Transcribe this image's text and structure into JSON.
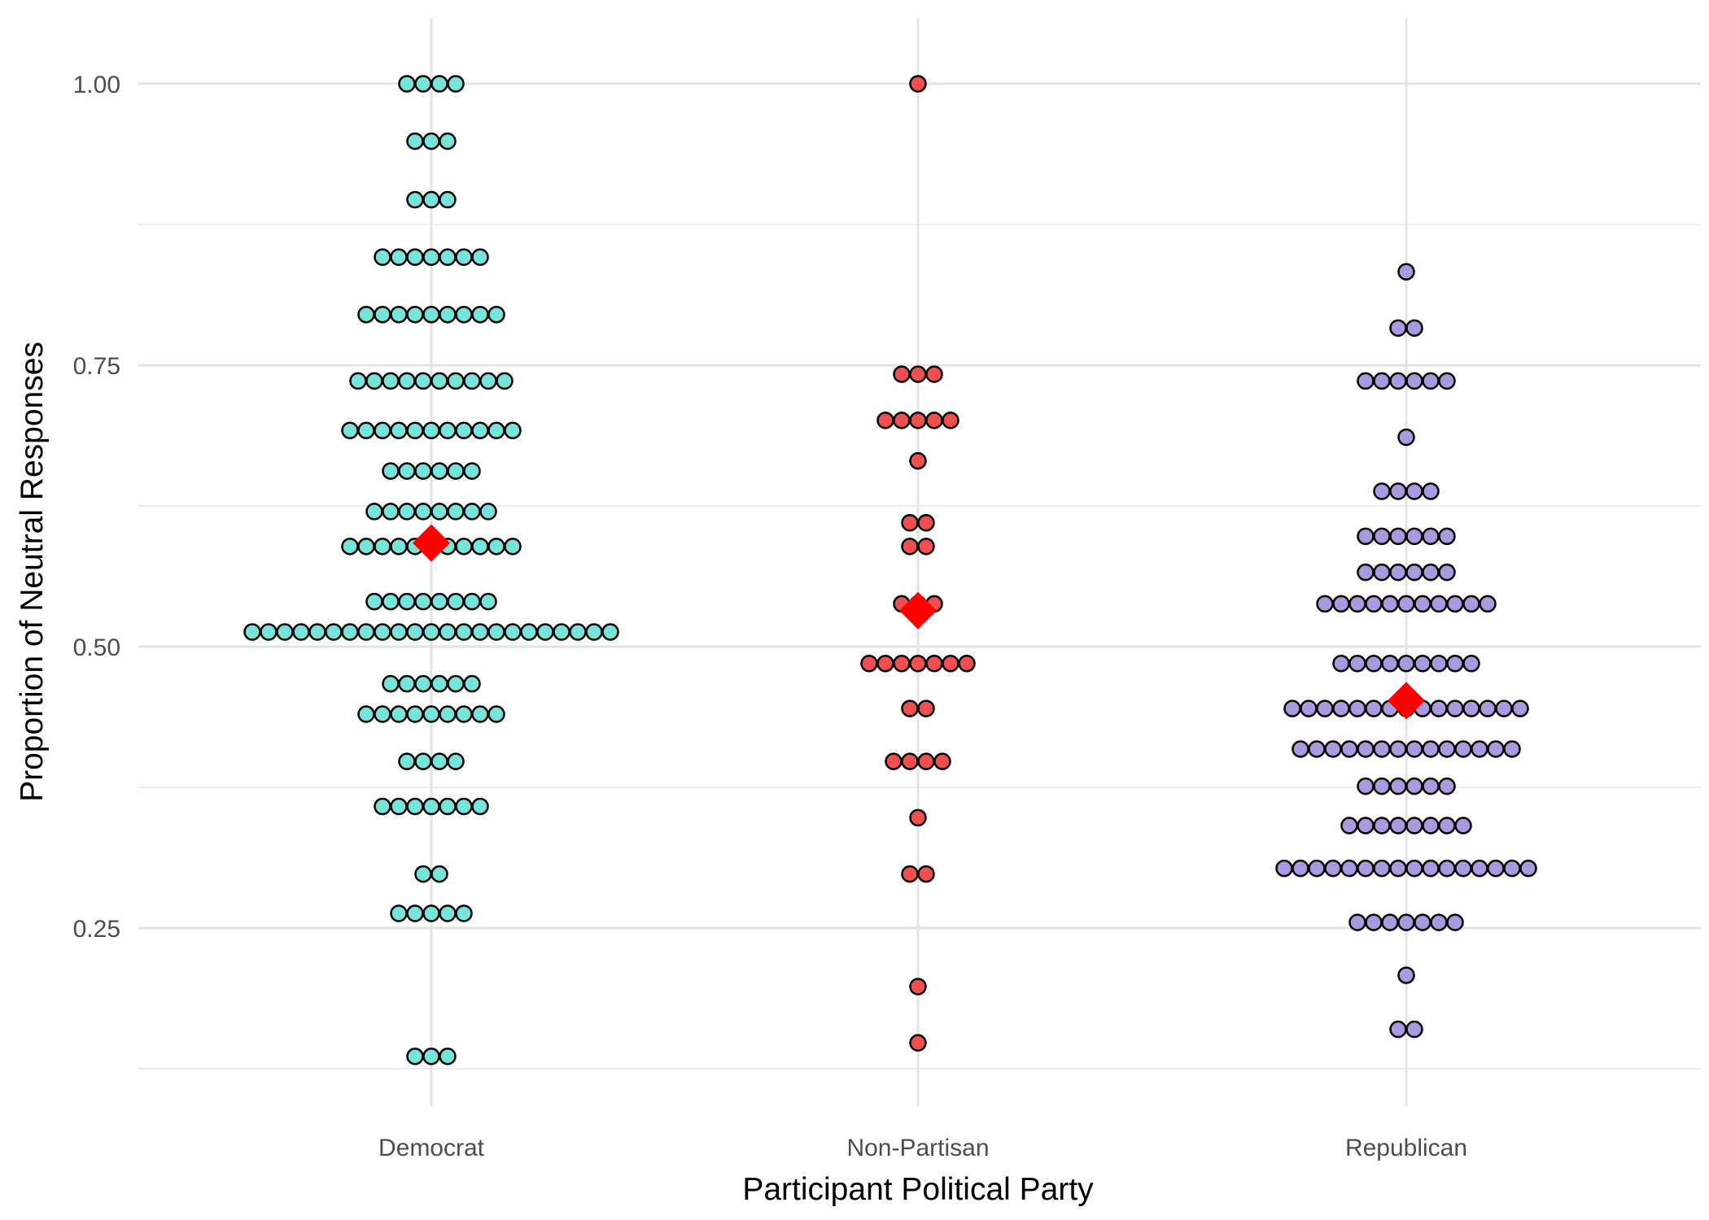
{
  "chart_data": {
    "type": "dotplot",
    "xlabel": "Participant Political Party",
    "ylabel": "Proportion of Neutral Responses",
    "categories": [
      "Democrat",
      "Non-Partisan",
      "Republican"
    ],
    "y_ticks": [
      0.25,
      0.5,
      0.75,
      1.0
    ],
    "y_tick_labels": [
      "0.25",
      "0.50",
      "0.75",
      "1.00"
    ],
    "ylim": [
      0.1,
      1.05
    ],
    "grid": true,
    "legend": "none",
    "colors": {
      "Democrat": "#76e4d8",
      "Non-Partisan": "#f04f4f",
      "Republican": "#a999de",
      "mean_marker": "#ff0000",
      "dot_outline": "#000000"
    },
    "series": [
      {
        "category": "Democrat",
        "bins": [
          {
            "y": 1.0,
            "count": 4
          },
          {
            "y": 0.949,
            "count": 3
          },
          {
            "y": 0.897,
            "count": 3
          },
          {
            "y": 0.846,
            "count": 7
          },
          {
            "y": 0.795,
            "count": 9
          },
          {
            "y": 0.736,
            "count": 10
          },
          {
            "y": 0.692,
            "count": 11
          },
          {
            "y": 0.656,
            "count": 6
          },
          {
            "y": 0.62,
            "count": 8
          },
          {
            "y": 0.589,
            "count": 11
          },
          {
            "y": 0.54,
            "count": 8
          },
          {
            "y": 0.513,
            "count": 23
          },
          {
            "y": 0.467,
            "count": 6
          },
          {
            "y": 0.44,
            "count": 9
          },
          {
            "y": 0.398,
            "count": 4
          },
          {
            "y": 0.358,
            "count": 7
          },
          {
            "y": 0.298,
            "count": 2
          },
          {
            "y": 0.263,
            "count": 5
          },
          {
            "y": 0.136,
            "count": 3
          }
        ],
        "mean": 0.592
      },
      {
        "category": "Non-Partisan",
        "bins": [
          {
            "y": 1.0,
            "count": 1
          },
          {
            "y": 0.742,
            "count": 3
          },
          {
            "y": 0.701,
            "count": 5
          },
          {
            "y": 0.665,
            "count": 1
          },
          {
            "y": 0.61,
            "count": 2
          },
          {
            "y": 0.589,
            "count": 2
          },
          {
            "y": 0.538,
            "count": 3
          },
          {
            "y": 0.485,
            "count": 7
          },
          {
            "y": 0.445,
            "count": 2
          },
          {
            "y": 0.398,
            "count": 4
          },
          {
            "y": 0.348,
            "count": 1
          },
          {
            "y": 0.298,
            "count": 2
          },
          {
            "y": 0.198,
            "count": 1
          },
          {
            "y": 0.148,
            "count": 1
          }
        ],
        "mean": 0.532
      },
      {
        "category": "Republican",
        "bins": [
          {
            "y": 0.833,
            "count": 1
          },
          {
            "y": 0.783,
            "count": 2
          },
          {
            "y": 0.736,
            "count": 6
          },
          {
            "y": 0.686,
            "count": 1
          },
          {
            "y": 0.638,
            "count": 4
          },
          {
            "y": 0.598,
            "count": 6
          },
          {
            "y": 0.566,
            "count": 6
          },
          {
            "y": 0.538,
            "count": 11
          },
          {
            "y": 0.485,
            "count": 9
          },
          {
            "y": 0.445,
            "count": 15
          },
          {
            "y": 0.409,
            "count": 14
          },
          {
            "y": 0.376,
            "count": 6
          },
          {
            "y": 0.341,
            "count": 8
          },
          {
            "y": 0.303,
            "count": 16
          },
          {
            "y": 0.255,
            "count": 7
          },
          {
            "y": 0.208,
            "count": 1
          },
          {
            "y": 0.16,
            "count": 2
          }
        ],
        "mean": 0.452
      }
    ]
  }
}
